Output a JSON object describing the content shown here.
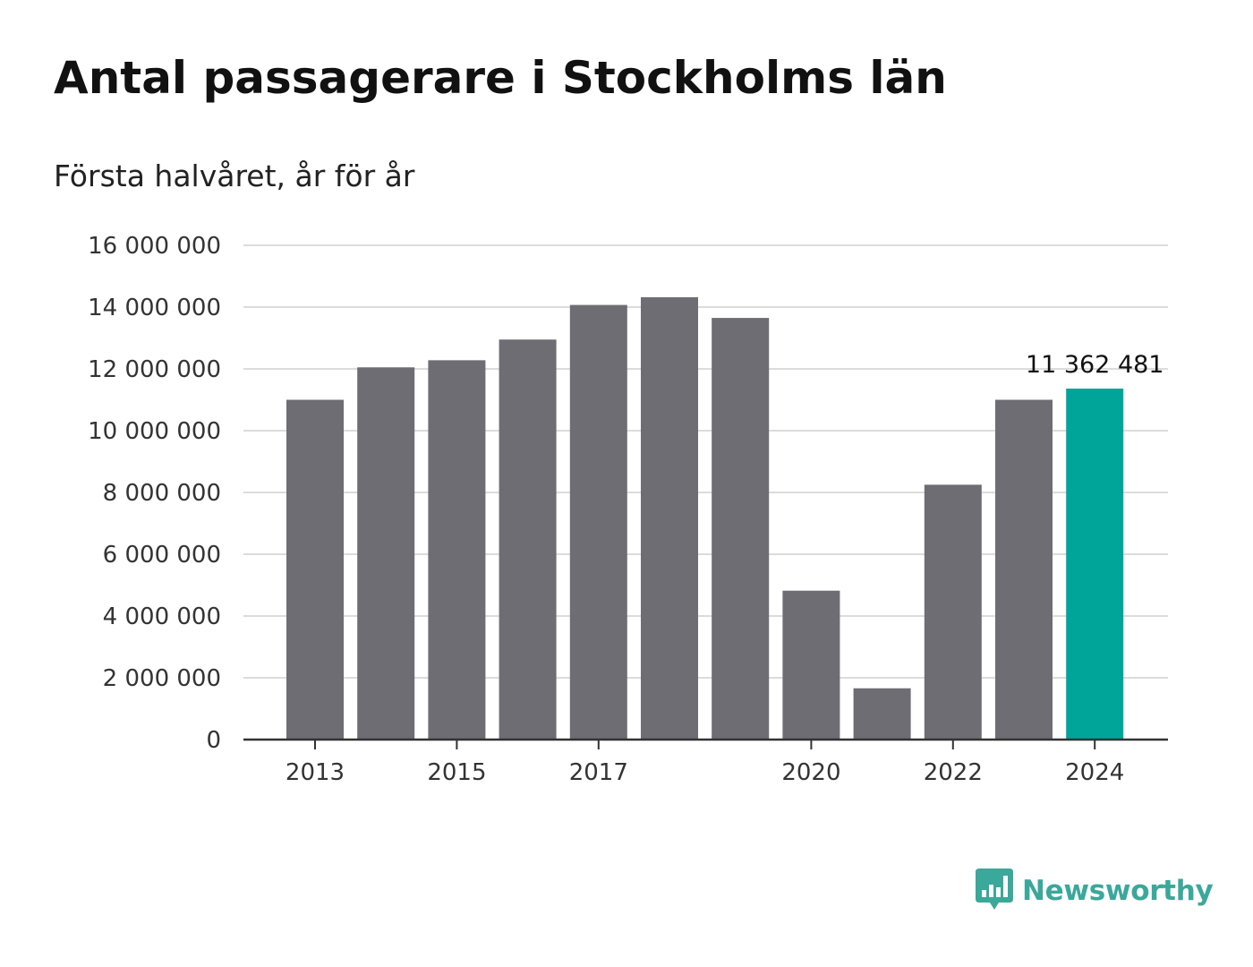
{
  "title": "Antal passagerare i Stockholms län",
  "subtitle": "Första halvåret, år för år",
  "brand": {
    "name": "Newsworthy",
    "icon": "newsworthy-logo-icon",
    "color": "#3aa89a"
  },
  "colors": {
    "bar": "#6e6d73",
    "highlight": "#00a59a",
    "grid": "#dcdcdc",
    "axis": "#333333"
  },
  "chart_data": {
    "type": "bar",
    "title": "Antal passagerare i Stockholms län",
    "subtitle": "Första halvåret, år för år",
    "xlabel": "",
    "ylabel": "",
    "ylim": [
      0,
      16000000
    ],
    "yticks": [
      0,
      2000000,
      4000000,
      6000000,
      8000000,
      10000000,
      12000000,
      14000000,
      16000000
    ],
    "ytick_labels": [
      "0",
      "2 000 000",
      "4 000 000",
      "6 000 000",
      "8 000 000",
      "10 000 000",
      "12 000 000",
      "14 000 000",
      "16 000 000"
    ],
    "categories": [
      "2013",
      "2014",
      "2015",
      "2016",
      "2017",
      "2018",
      "2019",
      "2020",
      "2021",
      "2022",
      "2023",
      "2024"
    ],
    "xtick_labels": [
      "2013",
      "",
      "2015",
      "",
      "2017",
      "",
      "",
      "2020",
      "",
      "2022",
      "",
      "2024"
    ],
    "values": [
      11000000,
      12050000,
      12280000,
      12950000,
      14070000,
      14320000,
      13650000,
      4820000,
      1660000,
      8250000,
      11000000,
      11362481
    ],
    "highlight_index": 11,
    "data_labels": [
      {
        "index": 11,
        "text": "11 362 481"
      }
    ],
    "grid": true,
    "legend": "none"
  }
}
